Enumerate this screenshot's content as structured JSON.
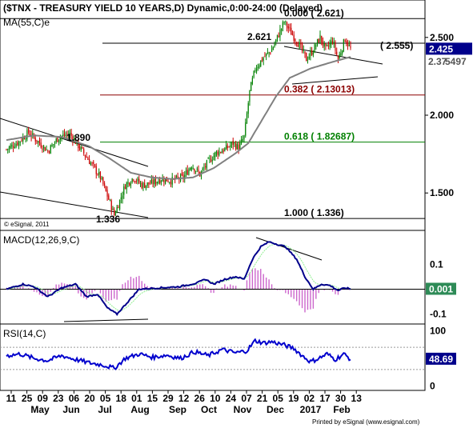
{
  "chart_data": [
    {
      "type": "candlestick",
      "title": "($TNX - TREASURY YIELD 10 YEARS,D) Dynamic,0:00-24:00 (Delayed)",
      "overlay_label": "MA(55,C)e",
      "copyright": "© eSignal, 2011",
      "ylim": [
        1.28,
        2.72
      ],
      "yticks": [
        "2.500",
        "2.000",
        "1.500"
      ],
      "last_value_label": "2.425",
      "ma_value_label": "2.37",
      "ma_value_label_tail": "5497",
      "annotations": {
        "high": "2.621",
        "low": "1.336",
        "swing_high_may": "1.890",
        "right_label": "( 2.555)"
      },
      "fib_levels": [
        {
          "label": "0.000 ( 2.621)",
          "value": 2.621,
          "color": "#000000"
        },
        {
          "label": "0.382 ( 2.13013)",
          "value": 2.13013,
          "color": "#8b0000"
        },
        {
          "label": "0.618 ( 1.82687)",
          "value": 1.82687,
          "color": "#008000"
        },
        {
          "label": "1.000 ( 1.336)",
          "value": 1.336,
          "color": "#000000"
        }
      ],
      "price_key": [
        {
          "i": 0,
          "v": 1.78
        },
        {
          "i": 9,
          "v": 1.83
        },
        {
          "i": 16,
          "v": 1.89
        },
        {
          "i": 24,
          "v": 1.82
        },
        {
          "i": 30,
          "v": 1.77
        },
        {
          "i": 38,
          "v": 1.86
        },
        {
          "i": 46,
          "v": 1.88
        },
        {
          "i": 54,
          "v": 1.78
        },
        {
          "i": 62,
          "v": 1.68
        },
        {
          "i": 68,
          "v": 1.6
        },
        {
          "i": 74,
          "v": 1.46
        },
        {
          "i": 78,
          "v": 1.36
        },
        {
          "i": 82,
          "v": 1.45
        },
        {
          "i": 86,
          "v": 1.55
        },
        {
          "i": 92,
          "v": 1.6
        },
        {
          "i": 98,
          "v": 1.55
        },
        {
          "i": 104,
          "v": 1.56
        },
        {
          "i": 112,
          "v": 1.59
        },
        {
          "i": 120,
          "v": 1.58
        },
        {
          "i": 128,
          "v": 1.6
        },
        {
          "i": 134,
          "v": 1.68
        },
        {
          "i": 140,
          "v": 1.62
        },
        {
          "i": 146,
          "v": 1.7
        },
        {
          "i": 152,
          "v": 1.76
        },
        {
          "i": 158,
          "v": 1.78
        },
        {
          "i": 164,
          "v": 1.82
        },
        {
          "i": 168,
          "v": 1.79
        },
        {
          "i": 172,
          "v": 1.86
        },
        {
          "i": 176,
          "v": 2.15
        },
        {
          "i": 180,
          "v": 2.3
        },
        {
          "i": 186,
          "v": 2.37
        },
        {
          "i": 192,
          "v": 2.42
        },
        {
          "i": 196,
          "v": 2.5
        },
        {
          "i": 201,
          "v": 2.6
        },
        {
          "i": 206,
          "v": 2.53
        },
        {
          "i": 212,
          "v": 2.45
        },
        {
          "i": 217,
          "v": 2.36
        },
        {
          "i": 222,
          "v": 2.42
        },
        {
          "i": 227,
          "v": 2.5
        },
        {
          "i": 231,
          "v": 2.42
        },
        {
          "i": 236,
          "v": 2.48
        },
        {
          "i": 240,
          "v": 2.36
        },
        {
          "i": 245,
          "v": 2.49
        },
        {
          "i": 249,
          "v": 2.425
        }
      ],
      "ma_key": [
        {
          "i": 0,
          "v": 1.84
        },
        {
          "i": 20,
          "v": 1.87
        },
        {
          "i": 40,
          "v": 1.86
        },
        {
          "i": 60,
          "v": 1.8
        },
        {
          "i": 75,
          "v": 1.72
        },
        {
          "i": 90,
          "v": 1.63
        },
        {
          "i": 105,
          "v": 1.6
        },
        {
          "i": 120,
          "v": 1.59
        },
        {
          "i": 135,
          "v": 1.6
        },
        {
          "i": 150,
          "v": 1.66
        },
        {
          "i": 165,
          "v": 1.75
        },
        {
          "i": 175,
          "v": 1.82
        },
        {
          "i": 185,
          "v": 1.97
        },
        {
          "i": 195,
          "v": 2.12
        },
        {
          "i": 205,
          "v": 2.24
        },
        {
          "i": 220,
          "v": 2.3
        },
        {
          "i": 235,
          "v": 2.34
        },
        {
          "i": 249,
          "v": 2.375
        }
      ],
      "bar_count": 250
    },
    {
      "type": "macd",
      "title": "MACD(12,26,9,C)",
      "ylim": [
        -0.13,
        0.21
      ],
      "yticks": [
        "0.1",
        "-0.1"
      ],
      "last_value_label": "0.001",
      "macd_key": [
        {
          "i": 0,
          "v": 0.0
        },
        {
          "i": 12,
          "v": 0.02
        },
        {
          "i": 20,
          "v": 0.01
        },
        {
          "i": 30,
          "v": -0.03
        },
        {
          "i": 40,
          "v": 0.005
        },
        {
          "i": 50,
          "v": 0.02
        },
        {
          "i": 58,
          "v": -0.03
        },
        {
          "i": 66,
          "v": -0.02
        },
        {
          "i": 73,
          "v": -0.075
        },
        {
          "i": 80,
          "v": -0.1
        },
        {
          "i": 88,
          "v": -0.05
        },
        {
          "i": 96,
          "v": 0.0
        },
        {
          "i": 110,
          "v": 0.005
        },
        {
          "i": 125,
          "v": 0.01
        },
        {
          "i": 138,
          "v": 0.025
        },
        {
          "i": 144,
          "v": 0.04
        },
        {
          "i": 150,
          "v": 0.02
        },
        {
          "i": 158,
          "v": 0.04
        },
        {
          "i": 166,
          "v": 0.05
        },
        {
          "i": 172,
          "v": 0.04
        },
        {
          "i": 178,
          "v": 0.12
        },
        {
          "i": 184,
          "v": 0.17
        },
        {
          "i": 190,
          "v": 0.19
        },
        {
          "i": 196,
          "v": 0.18
        },
        {
          "i": 202,
          "v": 0.17
        },
        {
          "i": 210,
          "v": 0.12
        },
        {
          "i": 216,
          "v": 0.05
        },
        {
          "i": 222,
          "v": 0.0
        },
        {
          "i": 228,
          "v": 0.02
        },
        {
          "i": 234,
          "v": 0.015
        },
        {
          "i": 240,
          "v": -0.005
        },
        {
          "i": 245,
          "v": 0.005
        },
        {
          "i": 249,
          "v": 0.001
        }
      ]
    },
    {
      "type": "rsi",
      "title": "RSI(14,C)",
      "ylim": [
        -5,
        105
      ],
      "yticks": [
        "100",
        "50",
        "0"
      ],
      "levels": [
        70,
        30
      ],
      "last_value_label": "48.69",
      "rsi_key": [
        {
          "i": 0,
          "v": 55
        },
        {
          "i": 10,
          "v": 58
        },
        {
          "i": 20,
          "v": 50
        },
        {
          "i": 30,
          "v": 46
        },
        {
          "i": 40,
          "v": 55
        },
        {
          "i": 50,
          "v": 48
        },
        {
          "i": 60,
          "v": 42
        },
        {
          "i": 70,
          "v": 38
        },
        {
          "i": 78,
          "v": 32
        },
        {
          "i": 86,
          "v": 50
        },
        {
          "i": 96,
          "v": 58
        },
        {
          "i": 106,
          "v": 52
        },
        {
          "i": 116,
          "v": 56
        },
        {
          "i": 126,
          "v": 50
        },
        {
          "i": 136,
          "v": 62
        },
        {
          "i": 146,
          "v": 55
        },
        {
          "i": 156,
          "v": 66
        },
        {
          "i": 166,
          "v": 60
        },
        {
          "i": 174,
          "v": 64
        },
        {
          "i": 180,
          "v": 82
        },
        {
          "i": 186,
          "v": 78
        },
        {
          "i": 192,
          "v": 80
        },
        {
          "i": 200,
          "v": 75
        },
        {
          "i": 208,
          "v": 68
        },
        {
          "i": 214,
          "v": 55
        },
        {
          "i": 220,
          "v": 44
        },
        {
          "i": 226,
          "v": 50
        },
        {
          "i": 232,
          "v": 58
        },
        {
          "i": 238,
          "v": 48
        },
        {
          "i": 244,
          "v": 58
        },
        {
          "i": 249,
          "v": 48.69
        }
      ]
    }
  ],
  "x_axis": {
    "day_ticks": [
      "11",
      "25",
      "09",
      "23",
      "06",
      "20",
      "05",
      "18",
      "01",
      "15",
      "29",
      "12",
      "26",
      "10",
      "24",
      "07",
      "21",
      "05",
      "19",
      "02",
      "17",
      "30",
      "13"
    ],
    "month_labels": [
      "May",
      "Jun",
      "Jul",
      "Aug",
      "Sep",
      "Oct",
      "Nov",
      "Dec",
      "2017",
      "Feb"
    ]
  },
  "footer": "Printed by eSignal (www.esignal.com)",
  "colors": {
    "up": "#008000",
    "down": "#cc0000",
    "ma": "#808080",
    "macd": "#00008b",
    "signal": "#90ee90",
    "histogram": "#cc66cc",
    "rsi": "#0000cd",
    "badge_last": "#00008b",
    "badge_macd": "#2e8b57"
  }
}
